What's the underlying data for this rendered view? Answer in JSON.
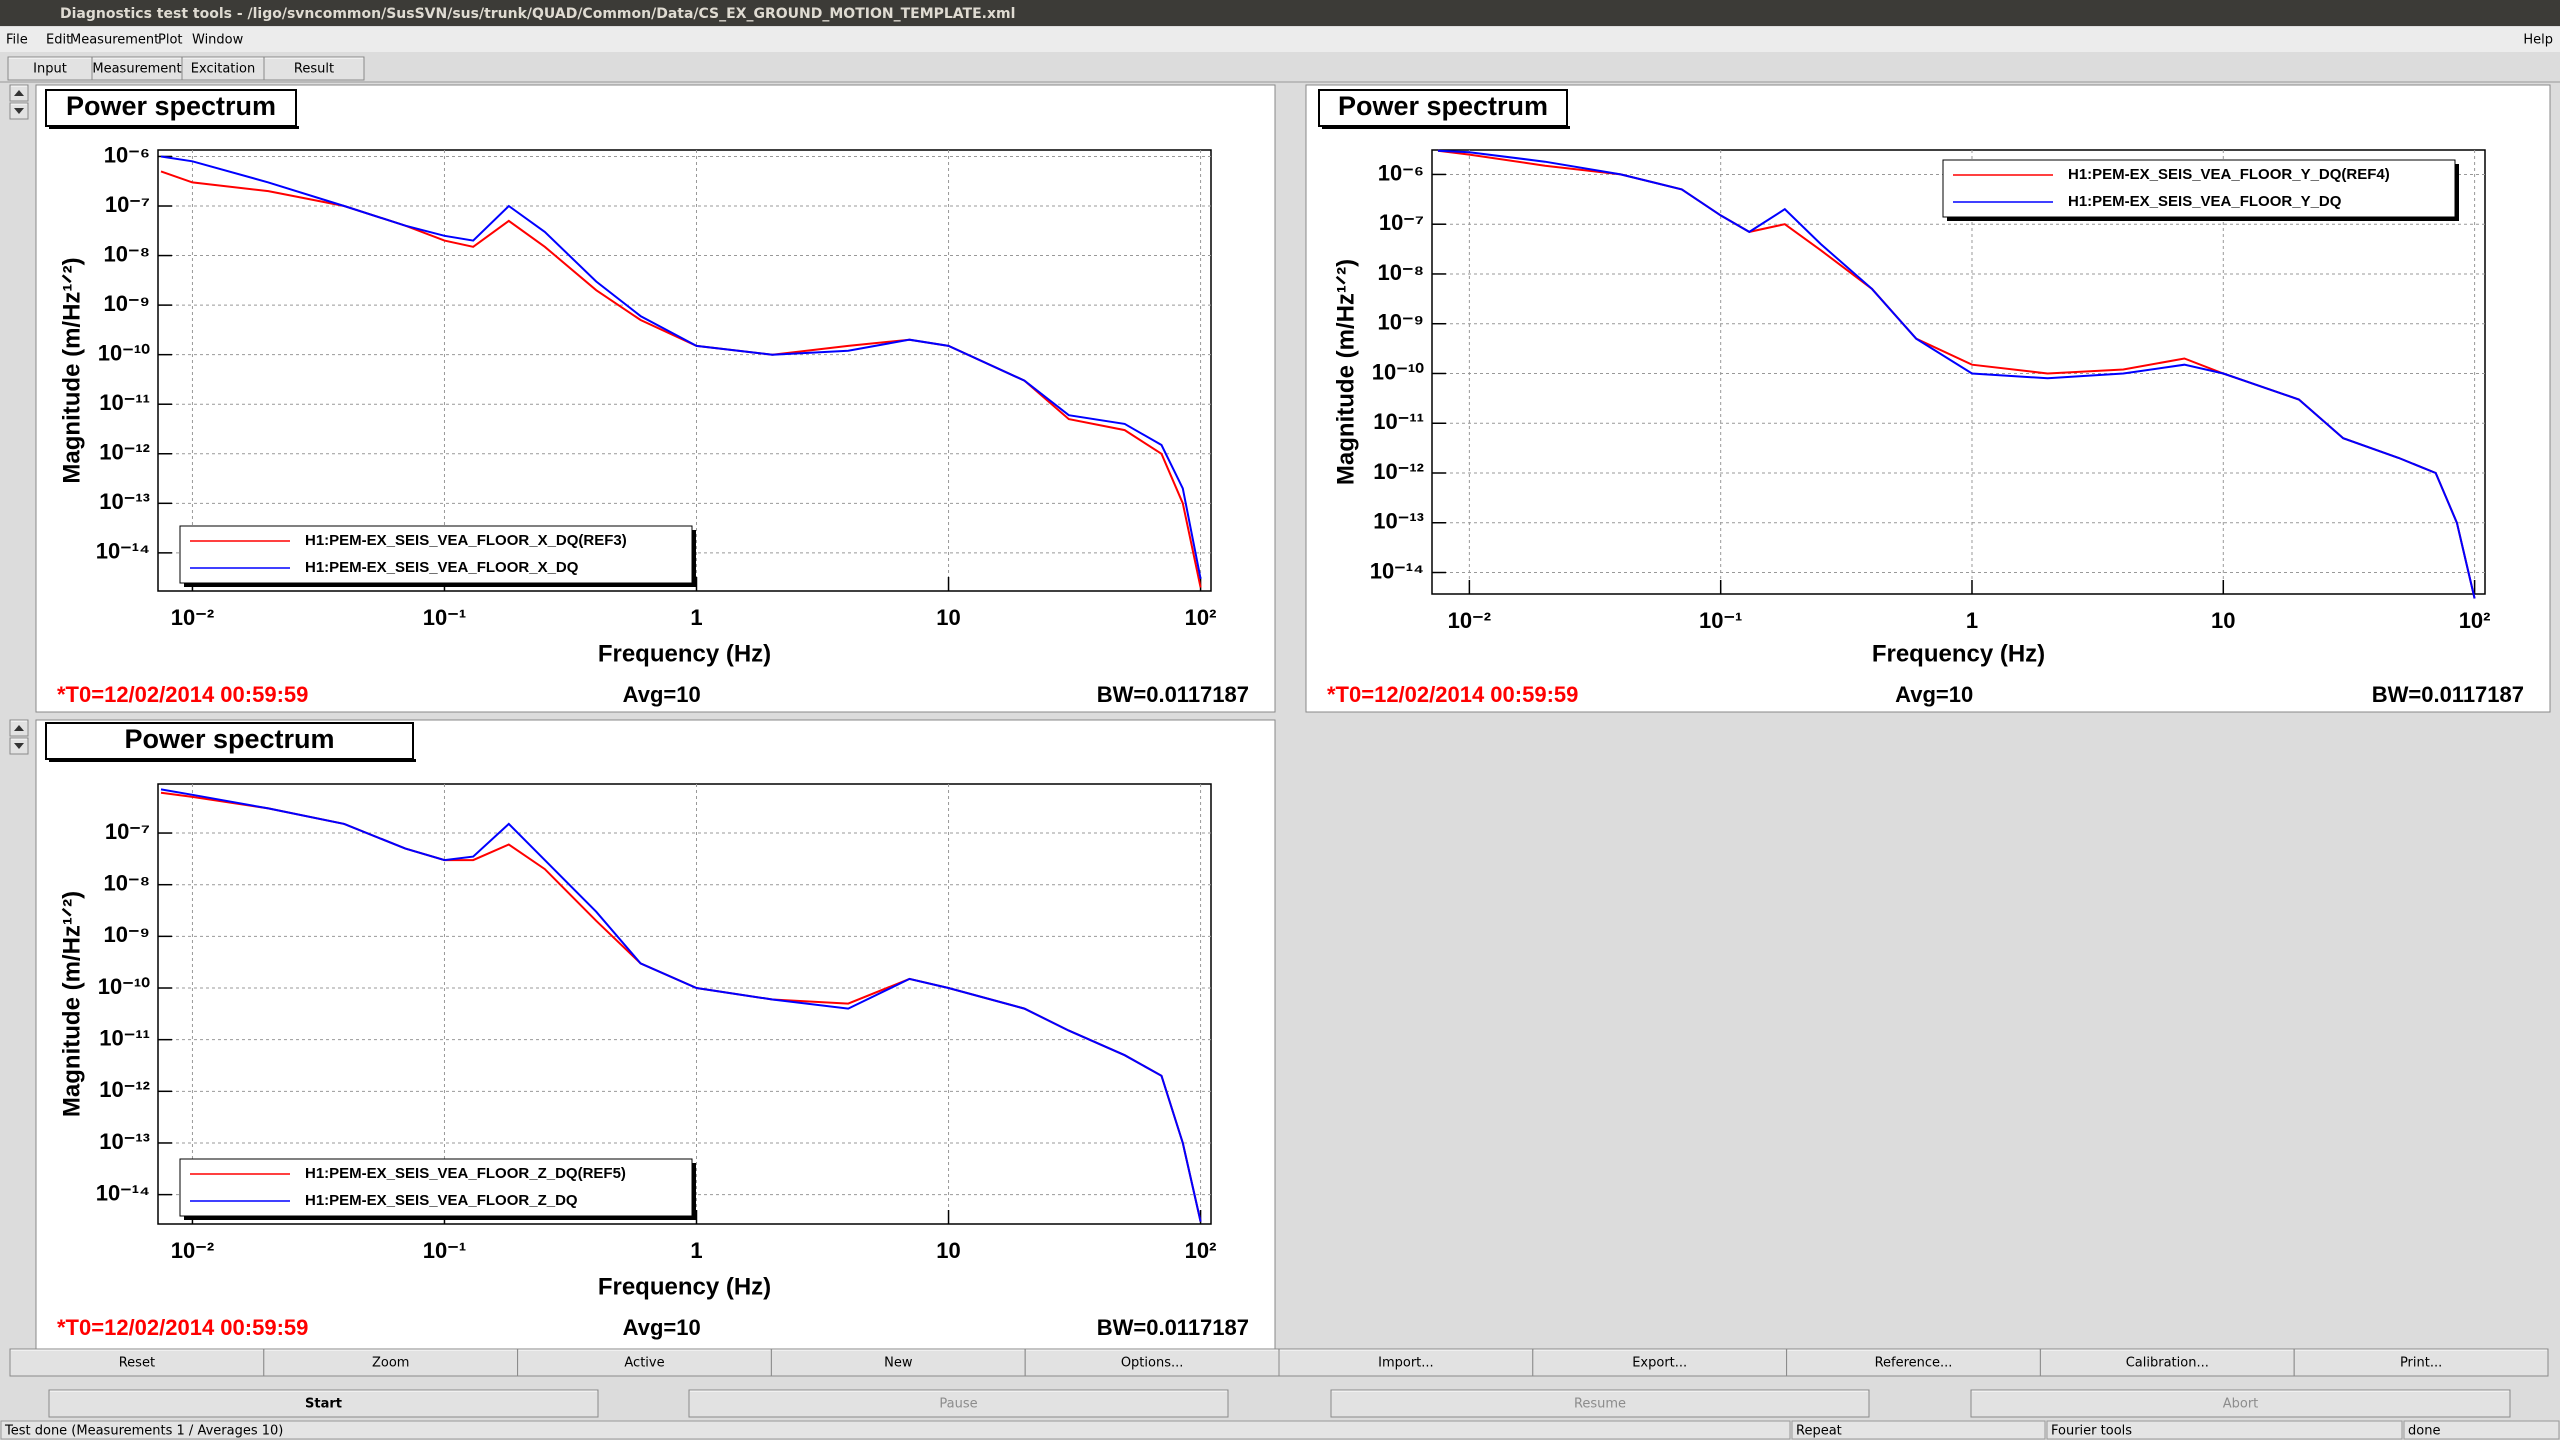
{
  "window_title": "Diagnostics test tools - /ligo/svncommon/SusSVN/sus/trunk/QUAD/Common/Data/CS_EX_GROUND_MOTION_TEMPLATE.xml",
  "menu": [
    "File",
    "Edit",
    "Measurement",
    "Plot",
    "Window"
  ],
  "help_menu": "Help",
  "tabs": [
    "Input",
    "Measurement",
    "Excitation",
    "Result"
  ],
  "chart_data": [
    {
      "type": "line",
      "title": "Power spectrum",
      "x_label": "Frequency (Hz)",
      "y_label": "Magnitude (m/Hz¹ᐟ²)",
      "log_x": true,
      "log_y": true,
      "grid": true,
      "legend": "lower left",
      "xlim": [
        0.0073,
        110
      ],
      "ylim": [
        1.7e-15,
        1.35e-06
      ],
      "xticks": [
        {
          "value": 0.01,
          "label": "10⁻²"
        },
        {
          "value": 0.1,
          "label": "10⁻¹"
        },
        1,
        10,
        {
          "value": 100,
          "label": "10²"
        }
      ],
      "yticks": [
        {
          "value": 1e-06,
          "label": "10⁻⁶"
        },
        {
          "value": 1e-07,
          "label": "10⁻⁷"
        },
        {
          "value": 1e-08,
          "label": "10⁻⁸"
        },
        {
          "value": 1e-09,
          "label": "10⁻⁹"
        },
        {
          "value": 1e-10,
          "label": "10⁻¹⁰"
        },
        {
          "value": 1e-11,
          "label": "10⁻¹¹"
        },
        {
          "value": 1e-12,
          "label": "10⁻¹²"
        },
        {
          "value": 1e-13,
          "label": "10⁻¹³"
        },
        {
          "value": 1e-14,
          "label": "10⁻¹⁴"
        }
      ],
      "x": [
        0.0075,
        0.01,
        0.02,
        0.04,
        0.07,
        0.1,
        0.13,
        0.18,
        0.25,
        0.4,
        0.6,
        1,
        2,
        4,
        7,
        10,
        20,
        30,
        50,
        70,
        85,
        100
      ],
      "series": [
        {
          "name": "H1:PEM-EX_SEIS_VEA_FLOOR_X_DQ(REF3)",
          "color": "#ff0000",
          "values": [
            5e-07,
            3e-07,
            2e-07,
            1e-07,
            4e-08,
            2e-08,
            1.5e-08,
            5e-08,
            1.5e-08,
            2e-09,
            5e-10,
            1.5e-10,
            1e-10,
            1.5e-10,
            2e-10,
            1.5e-10,
            3e-11,
            5e-12,
            3e-12,
            1e-12,
            1e-13,
            2e-15
          ]
        },
        {
          "name": "H1:PEM-EX_SEIS_VEA_FLOOR_X_DQ",
          "color": "#0000ff",
          "values": [
            1e-06,
            8e-07,
            3e-07,
            1e-07,
            4e-08,
            2.5e-08,
            2e-08,
            1e-07,
            3e-08,
            3e-09,
            6e-10,
            1.5e-10,
            1e-10,
            1.2e-10,
            2e-10,
            1.5e-10,
            3e-11,
            6e-12,
            4e-12,
            1.5e-12,
            2e-13,
            3e-15
          ]
        }
      ],
      "annotations": [
        "*T0=12/02/2014 00:59:59",
        "Avg=10",
        "BW=0.0117187"
      ]
    },
    {
      "type": "line",
      "title": "Power spectrum",
      "x_label": "Frequency (Hz)",
      "y_label": "Magnitude (m/Hz¹ᐟ²)",
      "log_x": true,
      "log_y": true,
      "grid": true,
      "legend": "upper right",
      "xlim": [
        0.0071,
        110
      ],
      "ylim": [
        3.7e-15,
        3.1e-06
      ],
      "xticks": [
        {
          "value": 0.01,
          "label": "10⁻²"
        },
        {
          "value": 0.1,
          "label": "10⁻¹"
        },
        1,
        10,
        {
          "value": 100,
          "label": "10²"
        }
      ],
      "yticks": [
        {
          "value": 1e-06,
          "label": "10⁻⁶"
        },
        {
          "value": 1e-07,
          "label": "10⁻⁷"
        },
        {
          "value": 1e-08,
          "label": "10⁻⁸"
        },
        {
          "value": 1e-09,
          "label": "10⁻⁹"
        },
        {
          "value": 1e-10,
          "label": "10⁻¹⁰"
        },
        {
          "value": 1e-11,
          "label": "10⁻¹¹"
        },
        {
          "value": 1e-12,
          "label": "10⁻¹²"
        },
        {
          "value": 1e-13,
          "label": "10⁻¹³"
        },
        {
          "value": 1e-14,
          "label": "10⁻¹⁴"
        }
      ],
      "x": [
        0.0075,
        0.01,
        0.02,
        0.04,
        0.07,
        0.1,
        0.13,
        0.18,
        0.25,
        0.4,
        0.6,
        1,
        2,
        4,
        7,
        10,
        20,
        30,
        50,
        70,
        85,
        100
      ],
      "series": [
        {
          "name": "H1:PEM-EX_SEIS_VEA_FLOOR_Y_DQ(REF4)",
          "color": "#ff0000",
          "values": [
            3e-06,
            2.5e-06,
            1.5e-06,
            1e-06,
            5e-07,
            1.5e-07,
            7e-08,
            1e-07,
            3e-08,
            5e-09,
            5e-10,
            1.5e-10,
            1e-10,
            1.2e-10,
            2e-10,
            1e-10,
            3e-11,
            5e-12,
            2e-12,
            1e-12,
            1e-13,
            3e-15
          ]
        },
        {
          "name": "H1:PEM-EX_SEIS_VEA_FLOOR_Y_DQ",
          "color": "#0000ff",
          "values": [
            3e-06,
            2.8e-06,
            1.8e-06,
            1e-06,
            5e-07,
            1.5e-07,
            7e-08,
            2e-07,
            4e-08,
            5e-09,
            5e-10,
            1e-10,
            8e-11,
            1e-10,
            1.5e-10,
            1e-10,
            3e-11,
            5e-12,
            2e-12,
            1e-12,
            1e-13,
            3e-15
          ]
        }
      ],
      "annotations": [
        "*T0=12/02/2014 00:59:59",
        "Avg=10",
        "BW=0.0117187"
      ]
    },
    {
      "type": "line",
      "title": "Power spectrum",
      "x_label": "Frequency (Hz)",
      "y_label": "Magnitude (m/Hz¹ᐟ²)",
      "log_x": true,
      "log_y": true,
      "grid": true,
      "legend": "lower left",
      "xlim": [
        0.0073,
        110
      ],
      "ylim": [
        2.7e-15,
        8.9e-07
      ],
      "xticks": [
        {
          "value": 0.01,
          "label": "10⁻²"
        },
        {
          "value": 0.1,
          "label": "10⁻¹"
        },
        1,
        10,
        {
          "value": 100,
          "label": "10²"
        }
      ],
      "yticks": [
        {
          "value": 1e-07,
          "label": "10⁻⁷"
        },
        {
          "value": 1e-08,
          "label": "10⁻⁸"
        },
        {
          "value": 1e-09,
          "label": "10⁻⁹"
        },
        {
          "value": 1e-10,
          "label": "10⁻¹⁰"
        },
        {
          "value": 1e-11,
          "label": "10⁻¹¹"
        },
        {
          "value": 1e-12,
          "label": "10⁻¹²"
        },
        {
          "value": 1e-13,
          "label": "10⁻¹³"
        },
        {
          "value": 1e-14,
          "label": "10⁻¹⁴"
        }
      ],
      "x": [
        0.0075,
        0.01,
        0.02,
        0.04,
        0.07,
        0.1,
        0.13,
        0.18,
        0.25,
        0.4,
        0.6,
        1,
        2,
        4,
        7,
        10,
        20,
        30,
        50,
        70,
        85,
        100
      ],
      "series": [
        {
          "name": "H1:PEM-EX_SEIS_VEA_FLOOR_Z_DQ(REF5)",
          "color": "#ff0000",
          "values": [
            6e-07,
            5e-07,
            3e-07,
            1.5e-07,
            5e-08,
            3e-08,
            3e-08,
            6e-08,
            2e-08,
            2e-09,
            3e-10,
            1e-10,
            6e-11,
            5e-11,
            1.5e-10,
            1e-10,
            4e-11,
            1.5e-11,
            5e-12,
            2e-12,
            1e-13,
            3e-15
          ]
        },
        {
          "name": "H1:PEM-EX_SEIS_VEA_FLOOR_Z_DQ",
          "color": "#0000ff",
          "values": [
            7e-07,
            5.5e-07,
            3e-07,
            1.5e-07,
            5e-08,
            3e-08,
            3.5e-08,
            1.5e-07,
            3e-08,
            3e-09,
            3e-10,
            1e-10,
            6e-11,
            4e-11,
            1.5e-10,
            1e-10,
            4e-11,
            1.5e-11,
            5e-12,
            2e-12,
            1e-13,
            3e-15
          ]
        }
      ],
      "annotations": [
        "*T0=12/02/2014 00:59:59",
        "Avg=10",
        "BW=0.0117187"
      ]
    }
  ],
  "buttons": [
    "Reset",
    "Zoom",
    "Active",
    "New",
    "Options...",
    "Import...",
    "Export...",
    "Reference...",
    "Calibration...",
    "Print..."
  ],
  "controls": [
    "Start",
    "Pause",
    "Resume",
    "Abort"
  ],
  "status": [
    "Test done (Measurements 1 / Averages 10)",
    "Repeat",
    "Fourier tools",
    "done"
  ]
}
